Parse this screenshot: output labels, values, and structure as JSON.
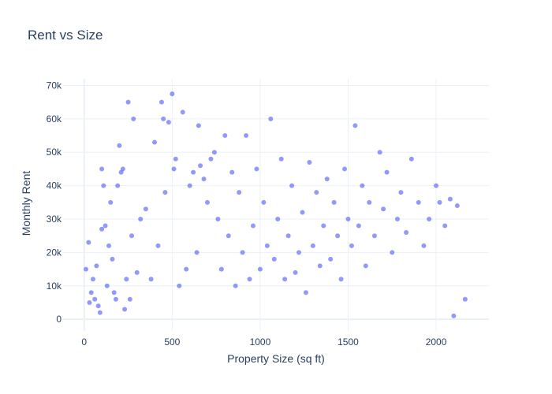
{
  "chart_data": {
    "type": "scatter",
    "title": "Rent vs Size",
    "xlabel": "Property Size (sq ft)",
    "ylabel": "Monthly Rent",
    "xlim": [
      -120,
      2300
    ],
    "ylim": [
      -3500,
      72000
    ],
    "xticks": [
      0,
      500,
      1000,
      1500,
      2000
    ],
    "xtick_labels": [
      "0",
      "500",
      "1000",
      "1500",
      "2000"
    ],
    "yticks": [
      0,
      10000,
      20000,
      30000,
      40000,
      50000,
      60000,
      70000
    ],
    "ytick_labels": [
      "0",
      "10k",
      "20k",
      "30k",
      "40k",
      "50k",
      "60k",
      "70k"
    ],
    "grid": true,
    "legend": "none",
    "marker_color": "#636efa",
    "marker_opacity": 0.7,
    "series": [
      {
        "values": [
          [
            10,
            15000
          ],
          [
            25,
            23000
          ],
          [
            30,
            5000
          ],
          [
            40,
            8000
          ],
          [
            50,
            12000
          ],
          [
            60,
            6000
          ],
          [
            70,
            16000
          ],
          [
            80,
            4000
          ],
          [
            90,
            2000
          ],
          [
            100,
            27000
          ],
          [
            100,
            45000
          ],
          [
            110,
            40000
          ],
          [
            120,
            28000
          ],
          [
            130,
            10000
          ],
          [
            140,
            22000
          ],
          [
            150,
            35000
          ],
          [
            160,
            18000
          ],
          [
            170,
            8000
          ],
          [
            180,
            6000
          ],
          [
            190,
            40000
          ],
          [
            200,
            52000
          ],
          [
            210,
            44000
          ],
          [
            220,
            45000
          ],
          [
            230,
            3000
          ],
          [
            240,
            12000
          ],
          [
            250,
            65000
          ],
          [
            260,
            6000
          ],
          [
            270,
            25000
          ],
          [
            280,
            60000
          ],
          [
            300,
            14000
          ],
          [
            320,
            30000
          ],
          [
            350,
            33000
          ],
          [
            380,
            12000
          ],
          [
            400,
            53000
          ],
          [
            420,
            22000
          ],
          [
            440,
            65000
          ],
          [
            450,
            60000
          ],
          [
            460,
            38000
          ],
          [
            480,
            59000
          ],
          [
            500,
            67500
          ],
          [
            510,
            45000
          ],
          [
            520,
            48000
          ],
          [
            540,
            10000
          ],
          [
            560,
            62000
          ],
          [
            580,
            15000
          ],
          [
            600,
            40000
          ],
          [
            620,
            44000
          ],
          [
            640,
            20000
          ],
          [
            650,
            58000
          ],
          [
            660,
            46000
          ],
          [
            680,
            42000
          ],
          [
            700,
            35000
          ],
          [
            720,
            48000
          ],
          [
            740,
            50000
          ],
          [
            760,
            30000
          ],
          [
            780,
            15000
          ],
          [
            800,
            55000
          ],
          [
            820,
            25000
          ],
          [
            840,
            44000
          ],
          [
            860,
            10000
          ],
          [
            880,
            38000
          ],
          [
            900,
            20000
          ],
          [
            920,
            55000
          ],
          [
            940,
            12000
          ],
          [
            960,
            28000
          ],
          [
            980,
            45000
          ],
          [
            1000,
            15000
          ],
          [
            1020,
            35000
          ],
          [
            1040,
            22000
          ],
          [
            1060,
            60000
          ],
          [
            1080,
            18000
          ],
          [
            1100,
            30000
          ],
          [
            1120,
            48000
          ],
          [
            1140,
            12000
          ],
          [
            1160,
            25000
          ],
          [
            1180,
            40000
          ],
          [
            1200,
            14000
          ],
          [
            1220,
            20000
          ],
          [
            1240,
            32000
          ],
          [
            1260,
            8000
          ],
          [
            1280,
            47000
          ],
          [
            1300,
            22000
          ],
          [
            1320,
            38000
          ],
          [
            1340,
            16000
          ],
          [
            1360,
            28000
          ],
          [
            1380,
            42000
          ],
          [
            1400,
            18000
          ],
          [
            1420,
            35000
          ],
          [
            1440,
            25000
          ],
          [
            1460,
            12000
          ],
          [
            1480,
            45000
          ],
          [
            1500,
            30000
          ],
          [
            1520,
            22000
          ],
          [
            1540,
            58000
          ],
          [
            1560,
            28000
          ],
          [
            1580,
            40000
          ],
          [
            1600,
            16000
          ],
          [
            1620,
            35000
          ],
          [
            1650,
            25000
          ],
          [
            1680,
            50000
          ],
          [
            1700,
            33000
          ],
          [
            1720,
            44000
          ],
          [
            1750,
            20000
          ],
          [
            1780,
            30000
          ],
          [
            1800,
            38000
          ],
          [
            1830,
            26000
          ],
          [
            1860,
            48000
          ],
          [
            1900,
            35000
          ],
          [
            1930,
            22000
          ],
          [
            1960,
            30000
          ],
          [
            2000,
            40000
          ],
          [
            2020,
            35000
          ],
          [
            2050,
            28000
          ],
          [
            2080,
            36000
          ],
          [
            2100,
            1000
          ],
          [
            2120,
            34000
          ],
          [
            2165,
            6000
          ]
        ]
      }
    ]
  }
}
